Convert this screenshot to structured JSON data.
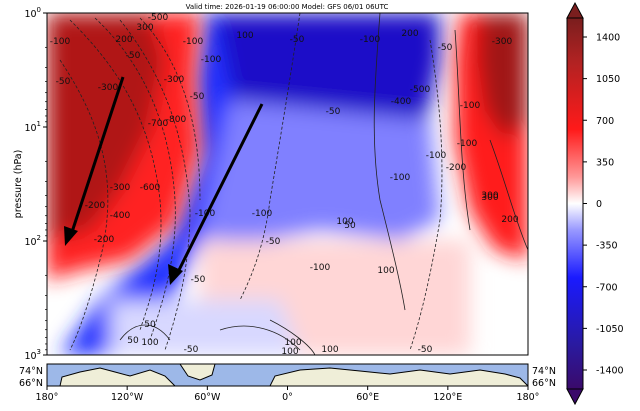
{
  "chart_data": {
    "type": "heatmap",
    "title": "Valid time: 2026-01-19 06:00:00 Model: GFS 06/01 06UTC",
    "xlabel": "",
    "ylabel": "pressure (hPa)",
    "x_ticks": [
      "180°",
      "120°W",
      "60°W",
      "0°",
      "60°E",
      "120°E",
      "180°"
    ],
    "y_ticks": [
      {
        "base": "10",
        "exp": "0"
      },
      {
        "base": "10",
        "exp": "1"
      },
      {
        "base": "10",
        "exp": "2"
      },
      {
        "base": "10",
        "exp": "3"
      }
    ],
    "y_scale": "log",
    "ylim": [
      1000,
      1
    ],
    "xlim": [
      -180,
      180
    ],
    "colorbar": {
      "labels": [
        "1400",
        "1050",
        "700",
        "350",
        "0",
        "-350",
        "-700",
        "-1050",
        "-1400"
      ],
      "range": [
        -1400,
        1400
      ]
    },
    "contour_labels": [
      "-500",
      "300",
      "200",
      "-50",
      "-100",
      "-100",
      "100",
      "-50",
      "-100",
      "200",
      "-300",
      "-50",
      "-300",
      "-300",
      "-400",
      "-500",
      "-700",
      "-800",
      "-600",
      "-300",
      "-200",
      "-400",
      "-200",
      "300",
      "-50",
      "-100",
      "-100",
      "-50",
      "-50",
      "-100",
      "-100",
      "100",
      "-200",
      "-100",
      "300",
      "200",
      "-50",
      "50",
      "-50",
      "50",
      "100",
      "100",
      "100",
      "-50",
      "50",
      "-100",
      "-50",
      "-100",
      "100",
      "-100",
      "100"
    ],
    "map_strip": {
      "lat_labels": [
        "74°N",
        "66°N",
        "74°N",
        "66°N"
      ]
    },
    "annotations": [
      "arrow",
      "arrow"
    ]
  }
}
